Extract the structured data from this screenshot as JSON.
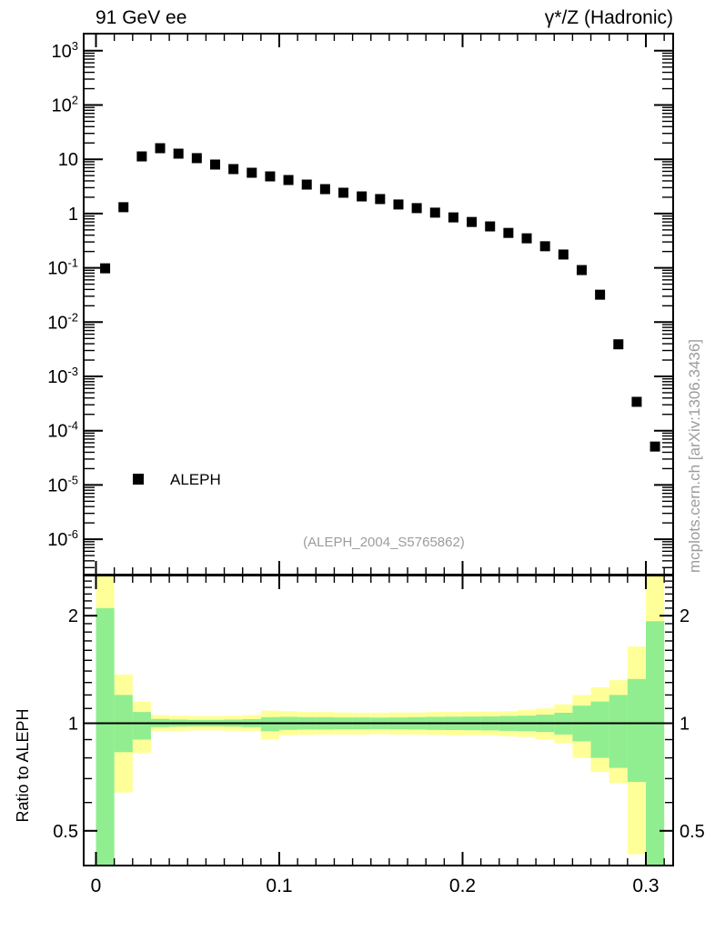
{
  "header": {
    "left": "91 GeV ee",
    "right": "γ*/Z (Hadronic)"
  },
  "legend": {
    "label": "ALEPH",
    "marker": "filled-square",
    "marker_color": "#000000"
  },
  "watermarks": {
    "center": "(ALEPH_2004_S5765862)",
    "right": "mcplots.cern.ch [arXiv:1306.3436]"
  },
  "axes": {
    "ratio_y_title": "Ratio to ALEPH",
    "x_tick_labels": [
      "0",
      "0.1",
      "0.2",
      "0.3"
    ],
    "x_tick_values": [
      0,
      0.1,
      0.2,
      0.3
    ],
    "main_y_exponents": [
      3,
      2,
      1,
      0,
      -1,
      -2,
      -3,
      -4,
      -5,
      -6
    ],
    "ratio_tick_labels": [
      "0.5",
      "1",
      "2"
    ],
    "ratio_tick_values": [
      0.5,
      1,
      2
    ]
  },
  "colors": {
    "band_outer": "#ffff99",
    "band_inner": "#90ee90",
    "marker": "#000000",
    "watermark": "#9c9c9c",
    "frame": "#000000"
  },
  "chart_data": [
    {
      "type": "scatter",
      "panel": "main",
      "yscale": "log",
      "xlim": [
        -0.0067,
        0.315
      ],
      "ylim": [
        2.2e-07,
        2000
      ],
      "title_left": "91 GeV ee",
      "title_right": "γ*/Z (Hadronic)",
      "annotation": "(ALEPH_2004_S5765862)",
      "series": [
        {
          "name": "ALEPH",
          "marker": "filled-square",
          "color": "#000000",
          "x": [
            0.005,
            0.015,
            0.025,
            0.035,
            0.045,
            0.055,
            0.065,
            0.075,
            0.085,
            0.095,
            0.105,
            0.115,
            0.125,
            0.135,
            0.145,
            0.155,
            0.165,
            0.175,
            0.185,
            0.195,
            0.205,
            0.215,
            0.225,
            0.235,
            0.245,
            0.255,
            0.265,
            0.275,
            0.285,
            0.295,
            0.305
          ],
          "y": [
            0.098,
            1.31,
            11.3,
            16.0,
            12.7,
            10.5,
            8.0,
            6.6,
            5.65,
            4.84,
            4.15,
            3.42,
            2.82,
            2.42,
            2.07,
            1.85,
            1.47,
            1.26,
            1.04,
            0.85,
            0.7,
            0.58,
            0.44,
            0.35,
            0.25,
            0.176,
            0.091,
            0.032,
            0.0039,
            0.00034,
            5.1e-05
          ]
        }
      ]
    },
    {
      "type": "ratio-bands",
      "panel": "ratio",
      "ylabel": "Ratio to ALEPH",
      "yscale": "log",
      "ylim": [
        0.4,
        2.59
      ],
      "unity_line": 1,
      "bin_edges": [
        0,
        0.01,
        0.02,
        0.03,
        0.04,
        0.05,
        0.06,
        0.07,
        0.08,
        0.09,
        0.1,
        0.11,
        0.12,
        0.13,
        0.14,
        0.15,
        0.16,
        0.17,
        0.18,
        0.19,
        0.2,
        0.21,
        0.22,
        0.23,
        0.24,
        0.25,
        0.26,
        0.27,
        0.28,
        0.29,
        0.3,
        0.31
      ],
      "bands": {
        "outer_color": "#ffff99",
        "inner_color": "#90ee90",
        "outer": [
          [
            0.4,
            2.59
          ],
          [
            0.64,
            1.37
          ],
          [
            0.825,
            1.15
          ],
          [
            0.95,
            1.055
          ],
          [
            0.952,
            1.05
          ],
          [
            0.955,
            1.048
          ],
          [
            0.955,
            1.048
          ],
          [
            0.952,
            1.05
          ],
          [
            0.95,
            1.055
          ],
          [
            0.9,
            1.085
          ],
          [
            0.925,
            1.08
          ],
          [
            0.928,
            1.075
          ],
          [
            0.93,
            1.075
          ],
          [
            0.93,
            1.072
          ],
          [
            0.93,
            1.07
          ],
          [
            0.932,
            1.07
          ],
          [
            0.93,
            1.072
          ],
          [
            0.93,
            1.072
          ],
          [
            0.928,
            1.075
          ],
          [
            0.925,
            1.075
          ],
          [
            0.925,
            1.078
          ],
          [
            0.925,
            1.078
          ],
          [
            0.92,
            1.08
          ],
          [
            0.915,
            1.09
          ],
          [
            0.9,
            1.1
          ],
          [
            0.88,
            1.13
          ],
          [
            0.8,
            1.2
          ],
          [
            0.73,
            1.26
          ],
          [
            0.68,
            1.32
          ],
          [
            0.43,
            1.64
          ],
          [
            0.4,
            2.59
          ]
        ],
        "inner": [
          [
            0.4,
            2.1
          ],
          [
            0.83,
            1.2
          ],
          [
            0.9,
            1.075
          ],
          [
            0.975,
            1.028
          ],
          [
            0.978,
            1.024
          ],
          [
            0.98,
            1.022
          ],
          [
            0.98,
            1.022
          ],
          [
            0.978,
            1.024
          ],
          [
            0.975,
            1.027
          ],
          [
            0.95,
            1.04
          ],
          [
            0.958,
            1.042
          ],
          [
            0.96,
            1.04
          ],
          [
            0.96,
            1.04
          ],
          [
            0.962,
            1.038
          ],
          [
            0.962,
            1.038
          ],
          [
            0.963,
            1.037
          ],
          [
            0.962,
            1.038
          ],
          [
            0.96,
            1.04
          ],
          [
            0.958,
            1.042
          ],
          [
            0.957,
            1.043
          ],
          [
            0.956,
            1.044
          ],
          [
            0.955,
            1.045
          ],
          [
            0.952,
            1.048
          ],
          [
            0.95,
            1.05
          ],
          [
            0.945,
            1.057
          ],
          [
            0.93,
            1.07
          ],
          [
            0.89,
            1.12
          ],
          [
            0.8,
            1.15
          ],
          [
            0.75,
            1.2
          ],
          [
            0.685,
            1.33
          ],
          [
            0.4,
            1.93
          ]
        ]
      }
    }
  ]
}
